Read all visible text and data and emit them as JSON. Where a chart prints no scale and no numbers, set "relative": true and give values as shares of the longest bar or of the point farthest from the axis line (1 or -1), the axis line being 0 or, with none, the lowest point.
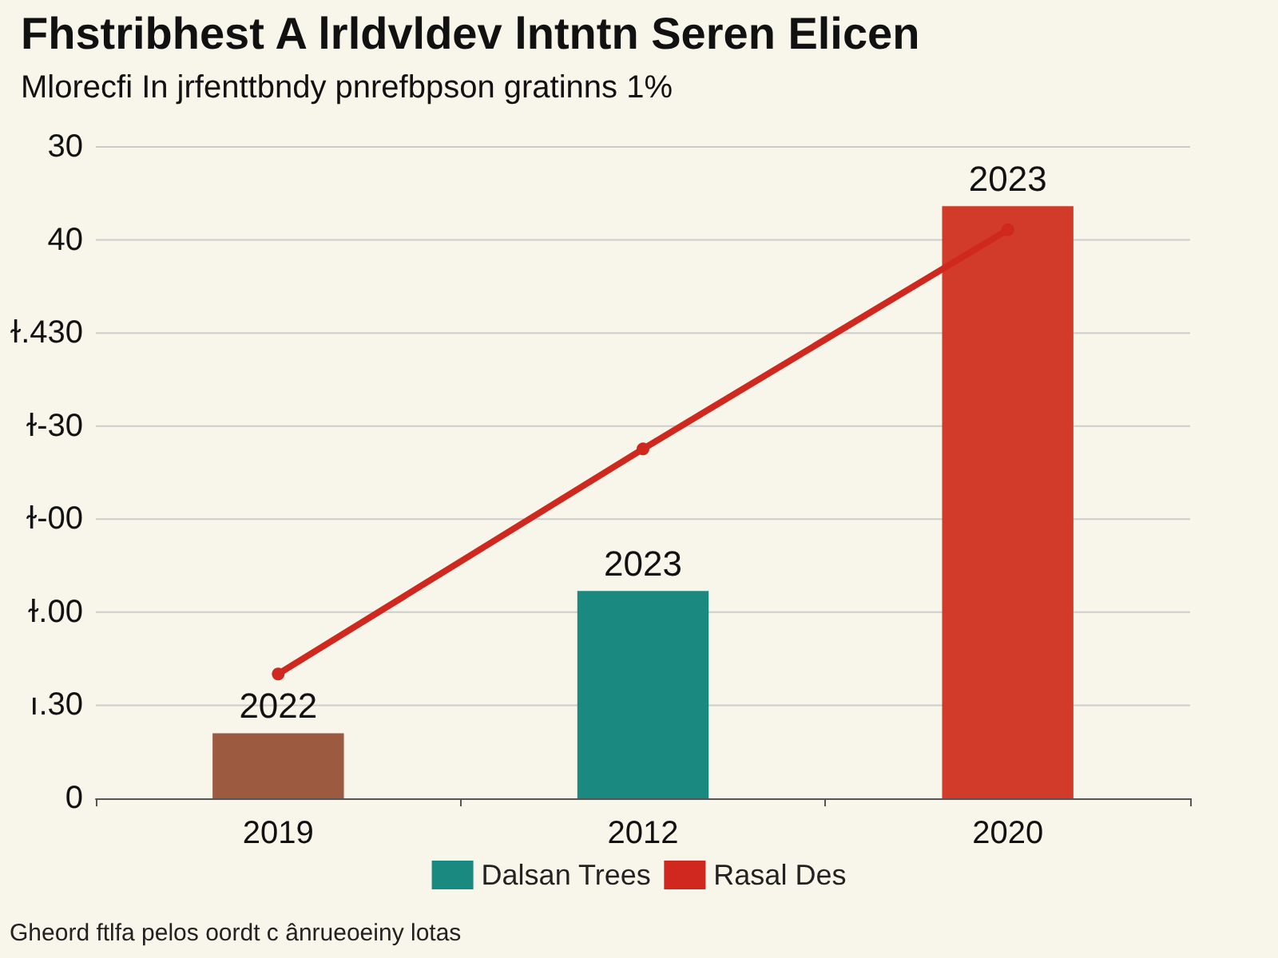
{
  "chart_data": {
    "type": "bar",
    "title": "Fhstribhest A lrldvldev lntntn Seren Elicen",
    "subtitle": "Mlorecfi In jrfenttbndy pnrefbpson gratinns 1%",
    "categories": [
      "2019",
      "2012",
      "2020"
    ],
    "relative": true,
    "series": [
      {
        "name": "Dalsan Trees",
        "color": "#1a8a80",
        "colors": [
          "#9c5a40",
          "#1a8a80",
          "#d23a2a"
        ],
        "values": [
          0.11,
          0.35,
          1
        ]
      },
      {
        "type": "line",
        "name": "Rasal Des",
        "color": "#d0281e",
        "values": [
          0.21,
          0.59,
          0.96
        ]
      }
    ],
    "grid": "y",
    "legend": "bottom",
    "marker": "circle",
    "line_style": "solid",
    "annotations": [
      {
        "text": "2022",
        "x": "2019",
        "y": 0.11
      },
      {
        "text": "2023",
        "x": "2012",
        "y": 0.35
      },
      {
        "text": "2023",
        "x": "2020",
        "y": 1
      },
      "0",
      "ı.30",
      "ɫ.00",
      "ɫ-00",
      "ɫ-30",
      "ɫ.430",
      "40",
      "30",
      "Gheord ftlfa pelos oordt c ânrueoeiny lotas"
    ]
  }
}
